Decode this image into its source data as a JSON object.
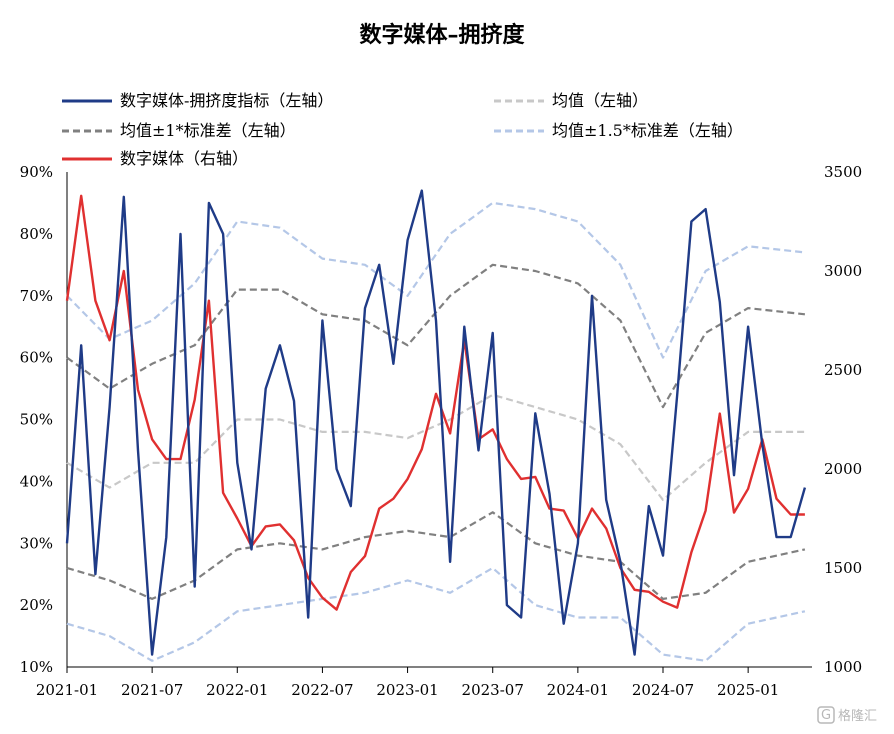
{
  "chart_data": {
    "type": "line",
    "title": "数字媒体–拥挤度",
    "x_ticks": [
      "2021-01",
      "2021-07",
      "2022-01",
      "2022-07",
      "2023-01",
      "2023-07",
      "2024-01",
      "2024-07",
      "2025-01"
    ],
    "left_axis": {
      "ticks": [
        "90%",
        "80%",
        "70%",
        "60%",
        "50%",
        "40%",
        "30%",
        "20%",
        "10%"
      ],
      "ylim": [
        0.1,
        0.9
      ]
    },
    "right_axis": {
      "ticks": [
        "3500",
        "3000",
        "2500",
        "2000",
        "1500",
        "1000"
      ],
      "ylim": [
        1000,
        3500
      ]
    },
    "legend": [
      {
        "label": "数字媒体-拥挤度指标（左轴）",
        "color": "#1f3b87",
        "style": "solid"
      },
      {
        "label": "均值（左轴）",
        "color": "#c8c8c8",
        "style": "dashed"
      },
      {
        "label": "均值±1*标准差（左轴）",
        "color": "#808080",
        "style": "dashed"
      },
      {
        "label": "均值±1.5*标准差（左轴）",
        "color": "#b4c7e7",
        "style": "dashed"
      },
      {
        "label": "数字媒体（右轴）",
        "color": "#e03030",
        "style": "solid"
      }
    ],
    "series": [
      {
        "name": "数字媒体-拥挤度指标（左轴）",
        "axis": "left",
        "x": [
          "2021-01",
          "2021-02",
          "2021-03",
          "2021-04",
          "2021-05",
          "2021-06",
          "2021-07",
          "2021-08",
          "2021-09",
          "2021-10",
          "2021-11",
          "2021-12",
          "2022-01",
          "2022-02",
          "2022-03",
          "2022-04",
          "2022-05",
          "2022-06",
          "2022-07",
          "2022-08",
          "2022-09",
          "2022-10",
          "2022-11",
          "2022-12",
          "2023-01",
          "2023-02",
          "2023-03",
          "2023-04",
          "2023-05",
          "2023-06",
          "2023-07",
          "2023-08",
          "2023-09",
          "2023-10",
          "2023-11",
          "2023-12",
          "2024-01",
          "2024-02",
          "2024-03",
          "2024-04",
          "2024-05",
          "2024-06",
          "2024-07",
          "2024-08",
          "2024-09",
          "2024-10",
          "2024-11",
          "2024-12",
          "2025-01",
          "2025-02",
          "2025-03",
          "2025-04",
          "2025-05"
        ],
        "values": [
          0.3,
          0.62,
          0.25,
          0.52,
          0.86,
          0.45,
          0.12,
          0.31,
          0.8,
          0.23,
          0.85,
          0.8,
          0.43,
          0.29,
          0.55,
          0.62,
          0.53,
          0.18,
          0.66,
          0.42,
          0.36,
          0.68,
          0.75,
          0.59,
          0.79,
          0.87,
          0.66,
          0.27,
          0.65,
          0.45,
          0.64,
          0.2,
          0.18,
          0.51,
          0.38,
          0.17,
          0.3,
          0.7,
          0.37,
          0.27,
          0.12,
          0.36,
          0.28,
          0.54,
          0.82,
          0.84,
          0.69,
          0.41,
          0.65,
          0.46,
          0.31,
          0.31,
          0.39
        ]
      },
      {
        "name": "数字媒体（右轴）",
        "axis": "right",
        "x": [
          "2021-01",
          "2021-02",
          "2021-03",
          "2021-04",
          "2021-05",
          "2021-06",
          "2021-07",
          "2021-08",
          "2021-09",
          "2021-10",
          "2021-11",
          "2021-12",
          "2022-01",
          "2022-02",
          "2022-03",
          "2022-04",
          "2022-05",
          "2022-06",
          "2022-07",
          "2022-08",
          "2022-09",
          "2022-10",
          "2022-11",
          "2022-12",
          "2023-01",
          "2023-02",
          "2023-03",
          "2023-04",
          "2023-05",
          "2023-06",
          "2023-07",
          "2023-08",
          "2023-09",
          "2023-10",
          "2023-11",
          "2023-12",
          "2024-01",
          "2024-02",
          "2024-03",
          "2024-04",
          "2024-05",
          "2024-06",
          "2024-07",
          "2024-08",
          "2024-09",
          "2024-10",
          "2024-11",
          "2024-12",
          "2025-01",
          "2025-02",
          "2025-03",
          "2025-04",
          "2025-05"
        ],
        "values": [
          2850,
          3380,
          2850,
          2650,
          3000,
          2400,
          2150,
          2050,
          2050,
          2350,
          2850,
          1880,
          1750,
          1610,
          1710,
          1720,
          1640,
          1450,
          1350,
          1290,
          1480,
          1560,
          1800,
          1850,
          1950,
          2100,
          2380,
          2180,
          2650,
          2150,
          2200,
          2050,
          1950,
          1960,
          1800,
          1790,
          1650,
          1800,
          1700,
          1500,
          1390,
          1380,
          1330,
          1300,
          1580,
          1790,
          2280,
          1780,
          1900,
          2150,
          1850,
          1770,
          1770
        ]
      },
      {
        "name": "均值（左轴）",
        "axis": "left",
        "x": [
          "2021-01",
          "2021-04",
          "2021-07",
          "2021-10",
          "2022-01",
          "2022-04",
          "2022-07",
          "2022-10",
          "2023-01",
          "2023-04",
          "2023-07",
          "2023-10",
          "2024-01",
          "2024-04",
          "2024-07",
          "2024-10",
          "2025-01",
          "2025-05"
        ],
        "values": [
          0.43,
          0.39,
          0.43,
          0.43,
          0.5,
          0.5,
          0.48,
          0.48,
          0.47,
          0.5,
          0.54,
          0.52,
          0.5,
          0.46,
          0.37,
          0.43,
          0.48,
          0.48
        ]
      },
      {
        "name": "均值±1*标准差（左轴）",
        "axis": "left",
        "x": [
          "2021-01",
          "2021-04",
          "2021-07",
          "2021-10",
          "2022-01",
          "2022-04",
          "2022-07",
          "2022-10",
          "2023-01",
          "2023-04",
          "2023-07",
          "2023-10",
          "2024-01",
          "2024-04",
          "2024-07",
          "2024-10",
          "2025-01",
          "2025-05"
        ],
        "values": [
          0.6,
          0.55,
          0.59,
          0.62,
          0.71,
          0.71,
          0.67,
          0.66,
          0.62,
          0.7,
          0.75,
          0.74,
          0.72,
          0.66,
          0.52,
          0.64,
          0.68,
          0.67
        ]
      },
      {
        "name": "均值±1*标准差（左轴）",
        "axis": "left",
        "x": [
          "2021-01",
          "2021-04",
          "2021-07",
          "2021-10",
          "2022-01",
          "2022-04",
          "2022-07",
          "2022-10",
          "2023-01",
          "2023-04",
          "2023-07",
          "2023-10",
          "2024-01",
          "2024-04",
          "2024-07",
          "2024-10",
          "2025-01",
          "2025-05"
        ],
        "values": [
          0.26,
          0.24,
          0.21,
          0.24,
          0.29,
          0.3,
          0.29,
          0.31,
          0.32,
          0.31,
          0.35,
          0.3,
          0.28,
          0.27,
          0.21,
          0.22,
          0.27,
          0.29
        ]
      },
      {
        "name": "均值±1.5*标准差（左轴）",
        "axis": "left",
        "x": [
          "2021-01",
          "2021-04",
          "2021-07",
          "2021-10",
          "2022-01",
          "2022-04",
          "2022-07",
          "2022-10",
          "2023-01",
          "2023-04",
          "2023-07",
          "2023-10",
          "2024-01",
          "2024-04",
          "2024-07",
          "2024-10",
          "2025-01",
          "2025-05"
        ],
        "values": [
          0.7,
          0.63,
          0.66,
          0.72,
          0.82,
          0.81,
          0.76,
          0.75,
          0.7,
          0.8,
          0.85,
          0.84,
          0.82,
          0.75,
          0.6,
          0.74,
          0.78,
          0.77
        ]
      },
      {
        "name": "均值±1.5*标准差（左轴）",
        "axis": "left",
        "x": [
          "2021-01",
          "2021-04",
          "2021-07",
          "2021-10",
          "2022-01",
          "2022-04",
          "2022-07",
          "2022-10",
          "2023-01",
          "2023-04",
          "2023-07",
          "2023-10",
          "2024-01",
          "2024-04",
          "2024-07",
          "2024-10",
          "2025-01",
          "2025-05"
        ],
        "values": [
          0.17,
          0.15,
          0.11,
          0.14,
          0.19,
          0.2,
          0.21,
          0.22,
          0.24,
          0.22,
          0.26,
          0.2,
          0.18,
          0.18,
          0.12,
          0.11,
          0.17,
          0.19
        ]
      }
    ]
  },
  "watermark": "格隆汇",
  "watermark_logo": "G"
}
